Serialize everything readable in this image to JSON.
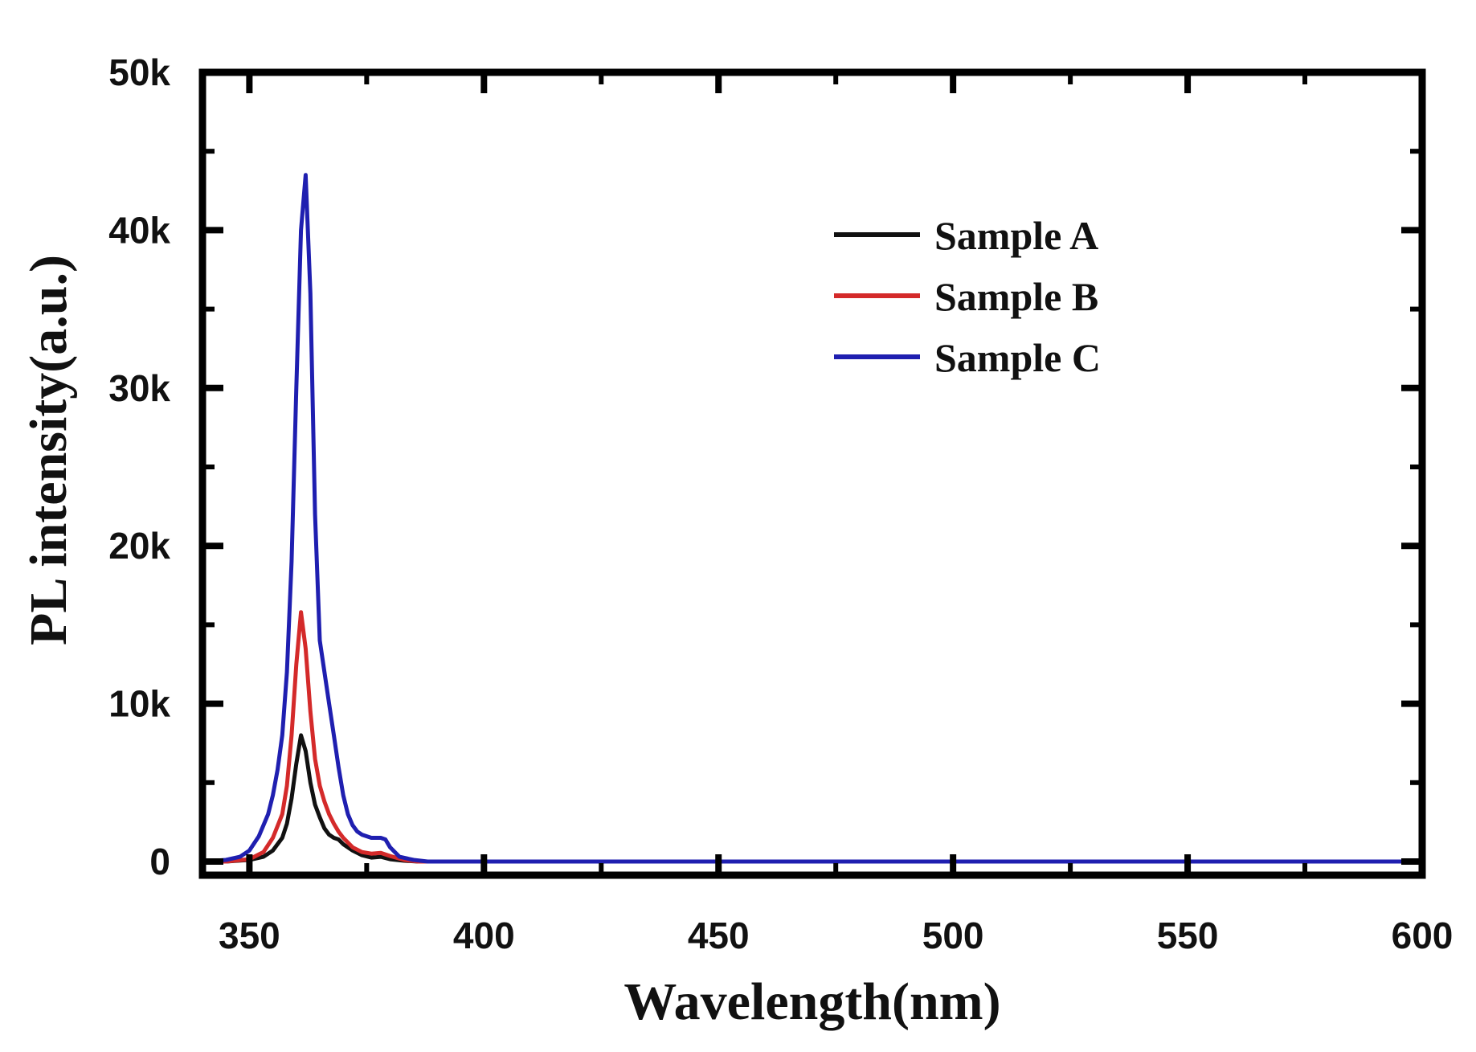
{
  "chart_data": {
    "type": "line",
    "title": "",
    "xlabel": "Wavelength(nm)",
    "ylabel": "PL intensity(a.u.)",
    "xlim": [
      340,
      600
    ],
    "ylim": [
      0,
      50000
    ],
    "xticks": [
      350,
      400,
      450,
      500,
      550,
      600
    ],
    "xtick_labels": [
      "350",
      "400",
      "450",
      "500",
      "550",
      "600"
    ],
    "yticks": [
      0,
      10000,
      20000,
      30000,
      40000,
      50000
    ],
    "ytick_labels": [
      "0",
      "10k",
      "20k",
      "30k",
      "40k",
      "50k"
    ],
    "grid": false,
    "legend_position": "top-right",
    "series": [
      {
        "name": "Sample A",
        "color": "#111111",
        "x": [
          340,
          345,
          350,
          353,
          355,
          357,
          358,
          359,
          360,
          361,
          362,
          363,
          364,
          365,
          366,
          367,
          368,
          369,
          370,
          372,
          374,
          376,
          378,
          380,
          383,
          386,
          390,
          400,
          450,
          500,
          550,
          600
        ],
        "y": [
          0,
          0,
          100,
          300,
          700,
          1500,
          2400,
          4000,
          6200,
          8000,
          7000,
          5000,
          3600,
          2800,
          2100,
          1700,
          1500,
          1400,
          1100,
          700,
          400,
          250,
          300,
          150,
          50,
          0,
          0,
          0,
          0,
          0,
          0,
          0
        ]
      },
      {
        "name": "Sample B",
        "color": "#d42a2a",
        "x": [
          340,
          345,
          350,
          353,
          355,
          357,
          358,
          359,
          360,
          361,
          362,
          363,
          364,
          365,
          366,
          367,
          368,
          369,
          370,
          372,
          374,
          376,
          378,
          380,
          383,
          386,
          390,
          400,
          450,
          500,
          550,
          600
        ],
        "y": [
          0,
          0,
          150,
          600,
          1500,
          3000,
          4800,
          8000,
          12500,
          15800,
          13500,
          9500,
          6500,
          4800,
          3800,
          3000,
          2400,
          1900,
          1500,
          900,
          600,
          500,
          550,
          350,
          100,
          0,
          0,
          0,
          0,
          0,
          0,
          0
        ]
      },
      {
        "name": "Sample C",
        "color": "#1f1fb0",
        "x": [
          340,
          345,
          348,
          350,
          352,
          354,
          355,
          356,
          357,
          358,
          359,
          360,
          361,
          362,
          363,
          364,
          365,
          366,
          367,
          368,
          369,
          370,
          371,
          372,
          373,
          374,
          376,
          378,
          379,
          380,
          382,
          385,
          388,
          390,
          400,
          450,
          500,
          550,
          600
        ],
        "y": [
          0,
          100,
          300,
          700,
          1600,
          3000,
          4200,
          5800,
          8000,
          12000,
          19000,
          30000,
          40000,
          43500,
          36000,
          22000,
          14000,
          12000,
          10000,
          8000,
          6000,
          4200,
          3000,
          2300,
          1900,
          1700,
          1500,
          1500,
          1400,
          900,
          300,
          100,
          0,
          0,
          0,
          0,
          0,
          0,
          0
        ]
      }
    ]
  }
}
